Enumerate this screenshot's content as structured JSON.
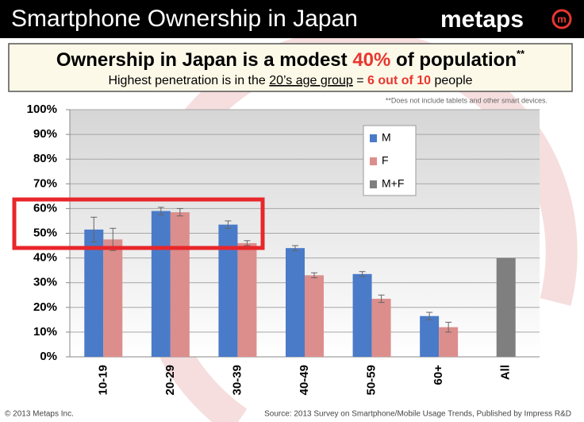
{
  "header": {
    "title": "Smartphone Ownership in Japan",
    "logo": "metaps"
  },
  "headline": {
    "parts": [
      "Ownership in Japan is a modest ",
      "40%",
      " of population",
      "**"
    ],
    "sub": [
      "Highest penetration is in the ",
      "20’s age group",
      " = ",
      "6 out of 10",
      " people"
    ]
  },
  "chart_data": {
    "type": "bar",
    "note": "**Does not include tablets and other smart devices.",
    "categories": [
      "10-19",
      "20-29",
      "30-39",
      "40-49",
      "50-59",
      "60+",
      "All"
    ],
    "series": [
      {
        "name": "M",
        "color": "#4a7bc8",
        "values": [
          51.5,
          59,
          53.5,
          44,
          33.5,
          16.5,
          null
        ],
        "errors": [
          5,
          1.5,
          1.5,
          1,
          1,
          1.5,
          null
        ]
      },
      {
        "name": "F",
        "color": "#dc8e8c",
        "values": [
          47.5,
          58.5,
          46,
          33,
          23.5,
          12,
          null
        ],
        "errors": [
          4.5,
          1.5,
          1,
          1,
          1.5,
          2,
          null
        ]
      },
      {
        "name": "M+F",
        "color": "#7f7f7f",
        "values": [
          null,
          null,
          null,
          null,
          null,
          null,
          40
        ]
      }
    ],
    "ylim": [
      0,
      100
    ],
    "yticks": [
      {
        "value": 0,
        "label": "0%"
      },
      {
        "value": 10,
        "label": "10%"
      },
      {
        "value": 20,
        "label": "20%"
      },
      {
        "value": 30,
        "label": "30%"
      },
      {
        "value": 40,
        "label": "40%"
      },
      {
        "value": 50,
        "label": "50%"
      },
      {
        "value": 60,
        "label": "60%"
      },
      {
        "value": 70,
        "label": "70%"
      },
      {
        "value": 80,
        "label": "80%"
      },
      {
        "value": 90,
        "label": "90%"
      },
      {
        "value": 100,
        "label": "100%"
      }
    ],
    "grid": true
  },
  "footer": {
    "copyright": "© 2013 Metaps Inc.",
    "source": "Source: 2013 Survey on Smartphone/Mobile Usage Trends, Published by Impress R&D"
  }
}
